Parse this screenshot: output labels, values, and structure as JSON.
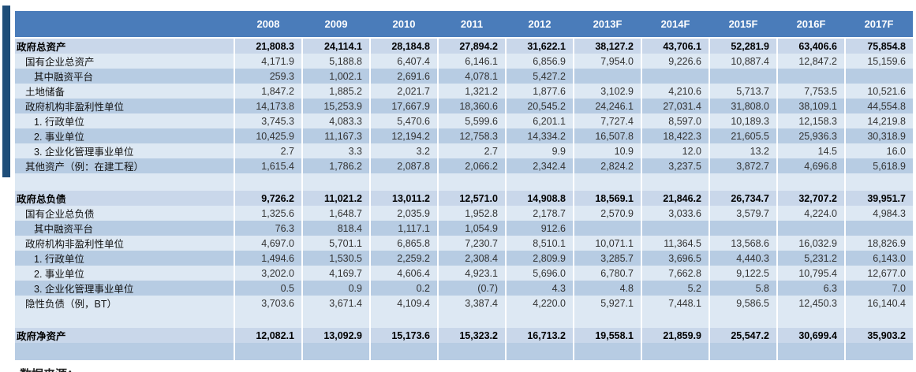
{
  "colors": {
    "header_bg": "#4a7cba",
    "accent_bar": "#1f4e79",
    "row_total": "#c9d7ea",
    "row_light": "#dde8f3",
    "row_medium": "#b7cce3"
  },
  "footer": {
    "source_text": "数据来源："
  },
  "table": {
    "columns": [
      "2008",
      "2009",
      "2010",
      "2011",
      "2012",
      "2013F",
      "2014F",
      "2015F",
      "2016F",
      "2017F"
    ],
    "rows": [
      {
        "label": "政府总资产",
        "indent": 0,
        "bold": true,
        "shade": "total",
        "values": [
          "21,808.3",
          "24,114.1",
          "28,184.8",
          "27,894.2",
          "31,622.1",
          "38,127.2",
          "43,706.1",
          "52,281.9",
          "63,406.6",
          "75,854.8"
        ]
      },
      {
        "label": "国有企业总资产",
        "indent": 1,
        "bold": false,
        "shade": "light",
        "values": [
          "4,171.9",
          "5,188.8",
          "6,407.4",
          "6,146.1",
          "6,856.9",
          "7,954.0",
          "9,226.6",
          "10,887.4",
          "12,847.2",
          "15,159.6"
        ]
      },
      {
        "label": "其中融资平台",
        "indent": 2,
        "bold": false,
        "shade": "medium",
        "values": [
          "259.3",
          "1,002.1",
          "2,691.6",
          "4,078.1",
          "5,427.2",
          "",
          "",
          "",
          "",
          ""
        ]
      },
      {
        "label": "土地储备",
        "indent": 1,
        "bold": false,
        "shade": "light",
        "values": [
          "1,847.2",
          "1,885.2",
          "2,021.7",
          "1,321.2",
          "1,877.6",
          "3,102.9",
          "4,210.6",
          "5,713.7",
          "7,753.5",
          "10,521.6"
        ]
      },
      {
        "label": "政府机构非盈利性单位",
        "indent": 1,
        "bold": false,
        "shade": "medium",
        "values": [
          "14,173.8",
          "15,253.9",
          "17,667.9",
          "18,360.6",
          "20,545.2",
          "24,246.1",
          "27,031.4",
          "31,808.0",
          "38,109.1",
          "44,554.8"
        ]
      },
      {
        "label": "1. 行政单位",
        "indent": 2,
        "bold": false,
        "shade": "light",
        "values": [
          "3,745.3",
          "4,083.3",
          "5,470.6",
          "5,599.6",
          "6,201.1",
          "7,727.4",
          "8,597.0",
          "10,189.3",
          "12,158.3",
          "14,219.8"
        ]
      },
      {
        "label": "2. 事业单位",
        "indent": 2,
        "bold": false,
        "shade": "medium",
        "values": [
          "10,425.9",
          "11,167.3",
          "12,194.2",
          "12,758.3",
          "14,334.2",
          "16,507.8",
          "18,422.3",
          "21,605.5",
          "25,936.3",
          "30,318.9"
        ]
      },
      {
        "label": "3. 企业化管理事业单位",
        "indent": 2,
        "bold": false,
        "shade": "light",
        "values": [
          "2.7",
          "3.3",
          "3.2",
          "2.7",
          "9.9",
          "10.9",
          "12.0",
          "13.2",
          "14.5",
          "16.0"
        ]
      },
      {
        "label": "其他资产（例：在建工程）",
        "indent": 1,
        "bold": false,
        "shade": "medium",
        "values": [
          "1,615.4",
          "1,786.2",
          "2,087.8",
          "2,066.2",
          "2,342.4",
          "2,824.2",
          "3,237.5",
          "3,872.7",
          "4,696.8",
          "5,618.9"
        ]
      },
      {
        "label": "",
        "indent": 0,
        "bold": false,
        "shade": "light",
        "blank": true,
        "values": [
          "",
          "",
          "",
          "",
          "",
          "",
          "",
          "",
          "",
          ""
        ]
      },
      {
        "label": "政府总负债",
        "indent": 0,
        "bold": true,
        "shade": "total",
        "values": [
          "9,726.2",
          "11,021.2",
          "13,011.2",
          "12,571.0",
          "14,908.8",
          "18,569.1",
          "21,846.2",
          "26,734.7",
          "32,707.2",
          "39,951.7"
        ]
      },
      {
        "label": "国有企业总负债",
        "indent": 1,
        "bold": false,
        "shade": "light",
        "values": [
          "1,325.6",
          "1,648.7",
          "2,035.9",
          "1,952.8",
          "2,178.7",
          "2,570.9",
          "3,033.6",
          "3,579.7",
          "4,224.0",
          "4,984.3"
        ]
      },
      {
        "label": "其中融资平台",
        "indent": 2,
        "bold": false,
        "shade": "medium",
        "values": [
          "76.3",
          "818.4",
          "1,117.1",
          "1,054.9",
          "912.6",
          "",
          "",
          "",
          "",
          ""
        ]
      },
      {
        "label": "政府机构非盈利性单位",
        "indent": 1,
        "bold": false,
        "shade": "light",
        "values": [
          "4,697.0",
          "5,701.1",
          "6,865.8",
          "7,230.7",
          "8,510.1",
          "10,071.1",
          "11,364.5",
          "13,568.6",
          "16,032.9",
          "18,826.9"
        ]
      },
      {
        "label": "1. 行政单位",
        "indent": 2,
        "bold": false,
        "shade": "medium",
        "values": [
          "1,494.6",
          "1,530.5",
          "2,259.2",
          "2,308.4",
          "2,809.9",
          "3,285.7",
          "3,696.5",
          "4,440.3",
          "5,231.2",
          "6,143.0"
        ]
      },
      {
        "label": "2. 事业单位",
        "indent": 2,
        "bold": false,
        "shade": "light",
        "values": [
          "3,202.0",
          "4,169.7",
          "4,606.4",
          "4,923.1",
          "5,696.0",
          "6,780.7",
          "7,662.8",
          "9,122.5",
          "10,795.4",
          "12,677.0"
        ]
      },
      {
        "label": "3. 企业化管理事业单位",
        "indent": 2,
        "bold": false,
        "shade": "medium",
        "values": [
          "0.5",
          "0.9",
          "0.2",
          "(0.7)",
          "4.3",
          "4.8",
          "5.2",
          "5.8",
          "6.3",
          "7.0"
        ]
      },
      {
        "label": "隐性负债（例，BT）",
        "indent": 1,
        "bold": false,
        "shade": "light",
        "values": [
          "3,703.6",
          "3,671.4",
          "4,109.4",
          "3,387.4",
          "4,220.0",
          "5,927.1",
          "7,448.1",
          "9,586.5",
          "12,450.3",
          "16,140.4"
        ]
      },
      {
        "label": "",
        "indent": 0,
        "bold": false,
        "shade": "light",
        "blank": true,
        "values": [
          "",
          "",
          "",
          "",
          "",
          "",
          "",
          "",
          "",
          ""
        ]
      },
      {
        "label": "政府净资产",
        "indent": 0,
        "bold": true,
        "shade": "total",
        "values": [
          "12,082.1",
          "13,092.9",
          "15,173.6",
          "15,323.2",
          "16,713.2",
          "19,558.1",
          "21,859.9",
          "25,547.2",
          "30,699.4",
          "35,903.2"
        ]
      },
      {
        "label": "",
        "indent": 0,
        "bold": false,
        "shade": "medium",
        "blank": true,
        "values": [
          "",
          "",
          "",
          "",
          "",
          "",
          "",
          "",
          "",
          ""
        ]
      }
    ]
  }
}
